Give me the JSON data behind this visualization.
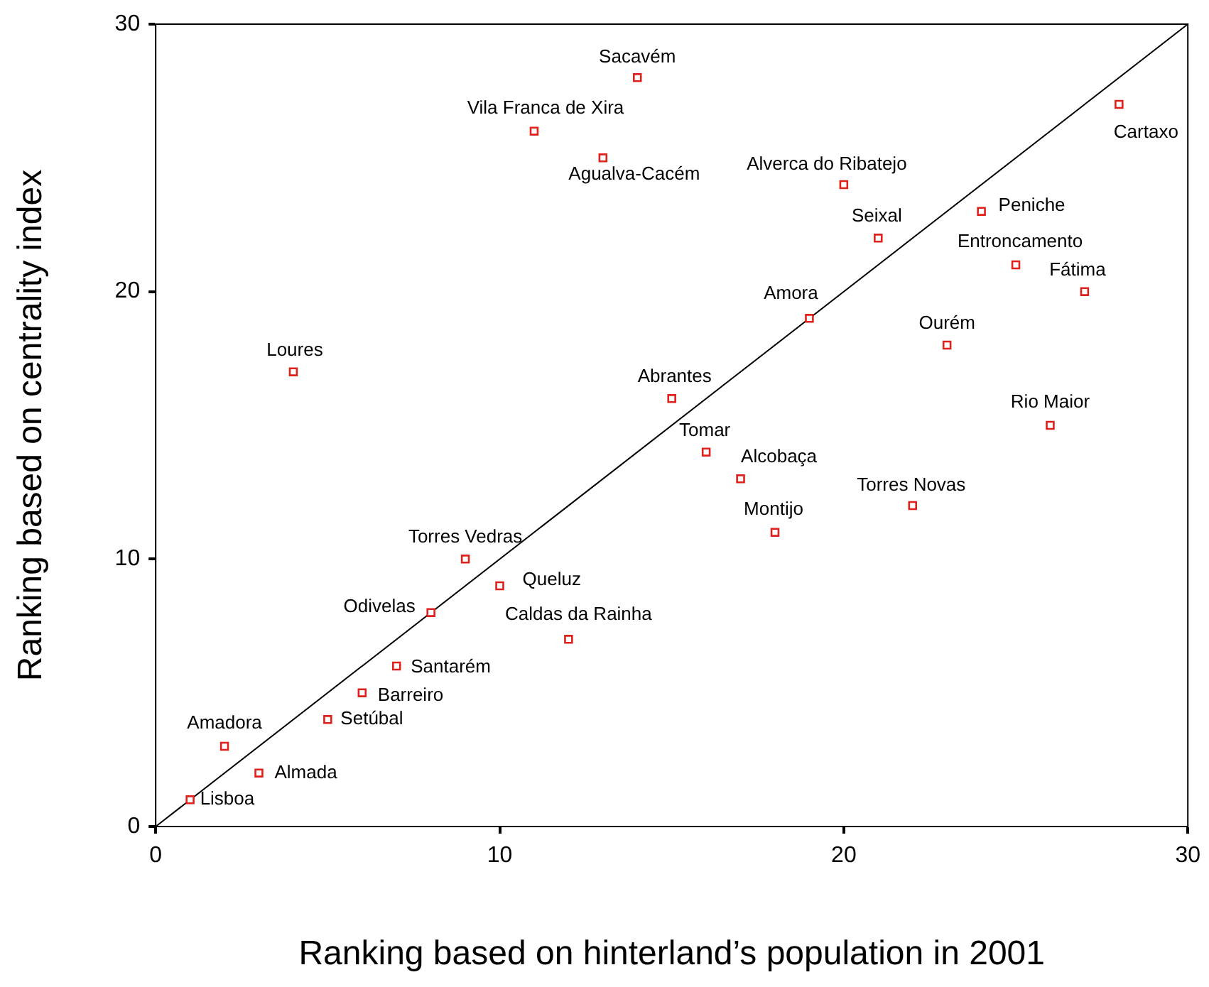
{
  "chart_data": {
    "type": "scatter",
    "xlabel": "Ranking based on hinterland’s population in 2001",
    "ylabel": "Ranking based on centrality index",
    "xlim": [
      0,
      30
    ],
    "ylim": [
      0,
      30
    ],
    "xticks": [
      0,
      10,
      20,
      30
    ],
    "yticks": [
      0,
      10,
      20,
      30
    ],
    "grid": false,
    "legend": false,
    "marker": "square",
    "series": [
      {
        "color": "#e0201b",
        "x": [
          1,
          3,
          2,
          5,
          6,
          7,
          8,
          12,
          10,
          9,
          4,
          18,
          22,
          17,
          16,
          15,
          26,
          19,
          23,
          27,
          25,
          21,
          24,
          20,
          13,
          11,
          14,
          28
        ],
        "values": [
          1,
          2,
          3,
          4,
          5,
          6,
          8,
          7,
          9,
          10,
          17,
          11,
          12,
          13,
          14,
          16,
          15,
          19,
          18,
          20,
          21,
          22,
          23,
          24,
          25,
          26,
          28,
          27
        ]
      },
      {
        "type": "line",
        "color": "#000000",
        "x": [
          0,
          30
        ],
        "values": [
          0,
          30
        ],
        "marker": "none"
      }
    ],
    "annotations": [
      {
        "text": "Lisboa",
        "x": 1,
        "y": 1
      },
      {
        "text": "Almada",
        "x": 3,
        "y": 2
      },
      {
        "text": "Amadora",
        "x": 2,
        "y": 3
      },
      {
        "text": "Setúbal",
        "x": 5,
        "y": 4
      },
      {
        "text": "Barreiro",
        "x": 6,
        "y": 5
      },
      {
        "text": "Santarém",
        "x": 7,
        "y": 6
      },
      {
        "text": "Odivelas",
        "x": 8,
        "y": 8
      },
      {
        "text": "Caldas da Rainha",
        "x": 12,
        "y": 7
      },
      {
        "text": "Queluz",
        "x": 10,
        "y": 9
      },
      {
        "text": "Torres Vedras",
        "x": 9,
        "y": 10
      },
      {
        "text": "Loures",
        "x": 4,
        "y": 17
      },
      {
        "text": "Montijo",
        "x": 18,
        "y": 11
      },
      {
        "text": "Torres Novas",
        "x": 22,
        "y": 12
      },
      {
        "text": "Alcobaça",
        "x": 17,
        "y": 13
      },
      {
        "text": "Tomar",
        "x": 16,
        "y": 14
      },
      {
        "text": "Abrantes",
        "x": 15,
        "y": 16
      },
      {
        "text": "Rio Maior",
        "x": 26,
        "y": 15
      },
      {
        "text": "Amora",
        "x": 19,
        "y": 19
      },
      {
        "text": "Ourém",
        "x": 23,
        "y": 18
      },
      {
        "text": "Fátima",
        "x": 27,
        "y": 20
      },
      {
        "text": "Entroncamento",
        "x": 25,
        "y": 21
      },
      {
        "text": "Seixal",
        "x": 21,
        "y": 22
      },
      {
        "text": "Peniche",
        "x": 24,
        "y": 23
      },
      {
        "text": "Alverca do Ribatejo",
        "x": 20,
        "y": 24
      },
      {
        "text": "Agualva-Cacém",
        "x": 13,
        "y": 25
      },
      {
        "text": "Vila Franca de Xira",
        "x": 11,
        "y": 26
      },
      {
        "text": "Sacavém",
        "x": 14,
        "y": 28
      },
      {
        "text": "Cartaxo",
        "x": 28,
        "y": 27
      }
    ]
  }
}
